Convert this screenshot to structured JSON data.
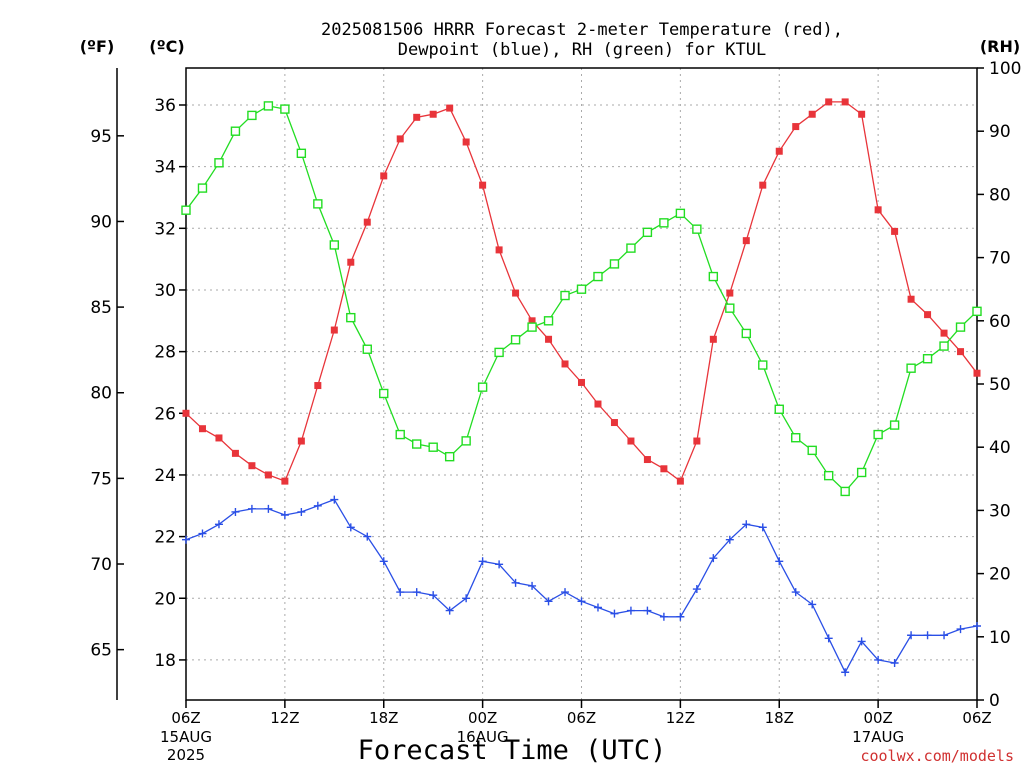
{
  "chart_data": {
    "type": "line",
    "title_line1": "2025081506 HRRR Forecast 2-meter Temperature (red),",
    "title_line2": "Dewpoint (blue), RH (green) for KTUL",
    "xlabel": "Forecast Time (UTC)",
    "credit": "coolwx.com/models",
    "axis_units": {
      "fahrenheit": "(ºF)",
      "celsius": "(ºC)",
      "rh": "(RH)"
    },
    "x_ticks": [
      "06Z",
      "12Z",
      "18Z",
      "00Z",
      "06Z",
      "12Z",
      "18Z",
      "00Z",
      "06Z"
    ],
    "x_sub_labels": [
      {
        "tick": 0,
        "line1": "15AUG",
        "line2": "2025"
      },
      {
        "tick": 3,
        "line1": "16AUG",
        "line2": ""
      },
      {
        "tick": 7,
        "line1": "17AUG",
        "line2": ""
      }
    ],
    "celsius_ticks": [
      "18",
      "20",
      "22",
      "24",
      "26",
      "28",
      "30",
      "32",
      "34",
      "36"
    ],
    "fahrenheit_ticks": [
      "65",
      "70",
      "75",
      "80",
      "85",
      "90",
      "95"
    ],
    "rh_ticks": [
      "0",
      "10",
      "20",
      "30",
      "40",
      "50",
      "60",
      "70",
      "80",
      "90",
      "100"
    ],
    "x_range_hours": [
      0,
      48
    ],
    "ylim_celsius": [
      16.7,
      37.2
    ],
    "ylim_rh": [
      0,
      100
    ],
    "grid": true,
    "series": [
      {
        "name": "Temperature",
        "color": "#e8343a",
        "marker": "filled-square",
        "axis": "celsius",
        "values": [
          26.0,
          25.5,
          25.2,
          24.7,
          24.3,
          24.0,
          23.8,
          25.1,
          26.9,
          28.7,
          30.9,
          32.2,
          33.7,
          34.9,
          35.6,
          35.7,
          35.9,
          34.8,
          33.4,
          31.3,
          29.9,
          29.0,
          28.4,
          27.6,
          27.0,
          26.3,
          25.7,
          25.1,
          24.5,
          24.2,
          23.8,
          25.1,
          28.4,
          29.9,
          31.6,
          33.4,
          34.5,
          35.3,
          35.7,
          36.1,
          36.1,
          35.7,
          32.6,
          31.9,
          29.7,
          29.2,
          28.6,
          28.0,
          27.3
        ]
      },
      {
        "name": "Dewpoint",
        "color": "#2a4fe6",
        "marker": "plus",
        "axis": "celsius",
        "values": [
          21.9,
          22.1,
          22.4,
          22.8,
          22.9,
          22.9,
          22.7,
          22.8,
          23.0,
          23.2,
          22.3,
          22.0,
          21.2,
          20.2,
          20.2,
          20.1,
          19.6,
          20.0,
          21.2,
          21.1,
          20.5,
          20.4,
          19.9,
          20.2,
          19.9,
          19.7,
          19.5,
          19.6,
          19.6,
          19.4,
          19.4,
          20.3,
          21.3,
          21.9,
          22.4,
          22.3,
          21.2,
          20.2,
          19.8,
          18.7,
          17.6,
          18.6,
          18.0,
          17.9,
          18.8,
          18.8,
          18.8,
          19.0,
          19.1
        ]
      },
      {
        "name": "RH",
        "color": "#22dd22",
        "marker": "open-square",
        "axis": "rh",
        "values": [
          77.5,
          81,
          85,
          90,
          92.5,
          94,
          93.5,
          86.5,
          78.5,
          72,
          60.5,
          55.5,
          48.5,
          42,
          40.5,
          40,
          38.5,
          41,
          49.5,
          55,
          57,
          59,
          60,
          64,
          65,
          67,
          69,
          71.5,
          74,
          75.5,
          77,
          74.5,
          67,
          62,
          58,
          53,
          46,
          41.5,
          39.5,
          35.5,
          33,
          36,
          42,
          43.5,
          52.5,
          54,
          56,
          59,
          61.5
        ]
      }
    ]
  }
}
